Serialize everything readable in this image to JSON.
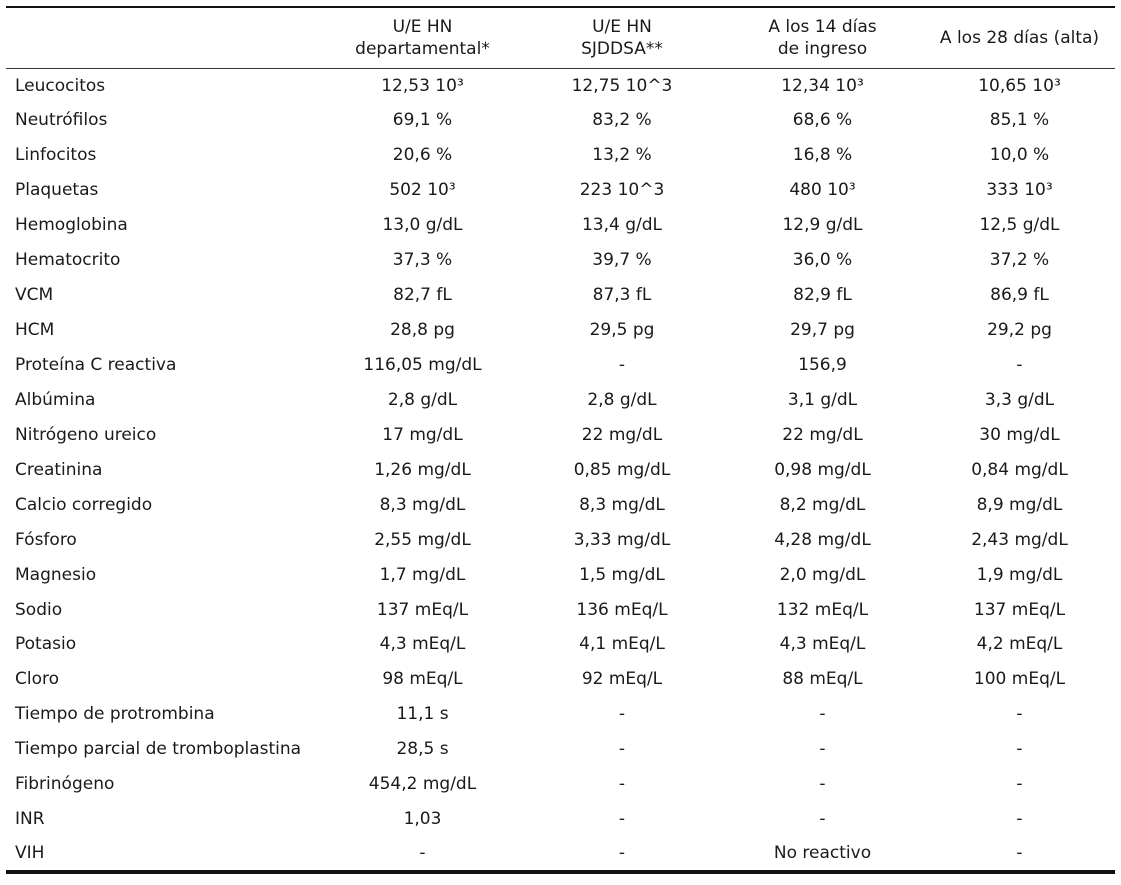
{
  "table": {
    "headers": [
      {
        "line1": "",
        "line2": ""
      },
      {
        "line1": "U/E HN",
        "line2": "departamental*"
      },
      {
        "line1": "U/E HN",
        "line2": "SJDDSA**"
      },
      {
        "line1": "A los 14 días",
        "line2": "de ingreso"
      },
      {
        "line1": "A los 28 días (alta)",
        "line2": ""
      }
    ],
    "rows": [
      [
        "Leucocitos",
        "12,53 10³",
        "12,75 10^3",
        "12,34 10³",
        "10,65 10³"
      ],
      [
        "Neutrófilos",
        "69,1 %",
        "83,2 %",
        "68,6 %",
        "85,1 %"
      ],
      [
        "Linfocitos",
        "20,6 %",
        "13,2 %",
        "16,8 %",
        "10,0 %"
      ],
      [
        "Plaquetas",
        "502 10³",
        "223 10^3",
        "480 10³",
        "333 10³"
      ],
      [
        "Hemoglobina",
        "13,0 g/dL",
        "13,4 g/dL",
        "12,9 g/dL",
        "12,5 g/dL"
      ],
      [
        "Hematocrito",
        "37,3 %",
        "39,7 %",
        "36,0 %",
        "37,2 %"
      ],
      [
        "VCM",
        "82,7 fL",
        "87,3 fL",
        "82,9 fL",
        "86,9 fL"
      ],
      [
        "HCM",
        "28,8 pg",
        "29,5 pg",
        "29,7 pg",
        "29,2 pg"
      ],
      [
        "Proteína C reactiva",
        "116,05 mg/dL",
        "-",
        "156,9",
        "-"
      ],
      [
        "Albúmina",
        "2,8 g/dL",
        "2,8 g/dL",
        "3,1 g/dL",
        "3,3 g/dL"
      ],
      [
        "Nitrógeno ureico",
        "17 mg/dL",
        "22 mg/dL",
        "22 mg/dL",
        "30 mg/dL"
      ],
      [
        "Creatinina",
        "1,26 mg/dL",
        "0,85 mg/dL",
        "0,98 mg/dL",
        "0,84 mg/dL"
      ],
      [
        "Calcio corregido",
        "8,3 mg/dL",
        "8,3 mg/dL",
        "8,2 mg/dL",
        "8,9 mg/dL"
      ],
      [
        "Fósforo",
        "2,55 mg/dL",
        "3,33 mg/dL",
        "4,28 mg/dL",
        "2,43 mg/dL"
      ],
      [
        "Magnesio",
        "1,7 mg/dL",
        "1,5 mg/dL",
        "2,0 mg/dL",
        "1,9 mg/dL"
      ],
      [
        "Sodio",
        "137 mEq/L",
        "136 mEq/L",
        "132 mEq/L",
        "137 mEq/L"
      ],
      [
        "Potasio",
        "4,3 mEq/L",
        "4,1 mEq/L",
        "4,3 mEq/L",
        "4,2 mEq/L"
      ],
      [
        "Cloro",
        "98 mEq/L",
        "92 mEq/L",
        "88 mEq/L",
        "100 mEq/L"
      ],
      [
        "Tiempo de protrombina",
        "11,1 s",
        "-",
        "-",
        "-"
      ],
      [
        "Tiempo parcial de tromboplastina",
        "28,5 s",
        "-",
        "-",
        "-"
      ],
      [
        "Fibrinógeno",
        "454,2 mg/dL",
        "-",
        "-",
        "-"
      ],
      [
        "INR",
        "1,03",
        "-",
        "-",
        "-"
      ],
      [
        "VIH",
        "-",
        "-",
        "No reactivo",
        "-"
      ]
    ]
  }
}
